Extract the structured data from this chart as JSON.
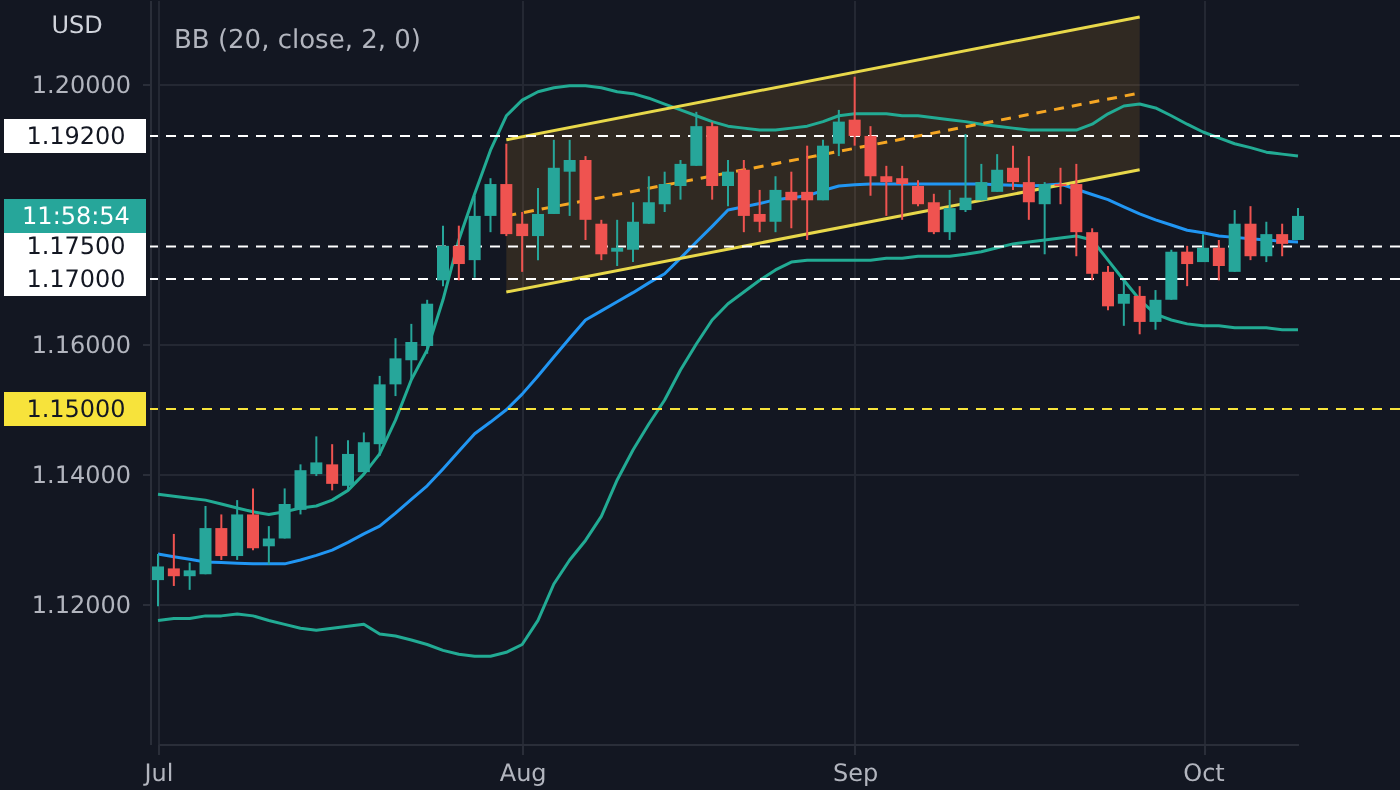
{
  "chart_data": {
    "type": "candlestick",
    "title": "BB (20, close, 2, 0)",
    "ylabel": "USD",
    "categories": [
      "Jul",
      null,
      null,
      null,
      null,
      null,
      null,
      null,
      null,
      null,
      null,
      null,
      null,
      null,
      null,
      null,
      null,
      null,
      null,
      null,
      null,
      null,
      null,
      "Aug",
      null,
      null,
      null,
      null,
      null,
      null,
      null,
      null,
      null,
      null,
      null,
      null,
      null,
      null,
      null,
      null,
      null,
      null,
      null,
      null,
      "Sep",
      null,
      null,
      null,
      null,
      null,
      null,
      null,
      null,
      null,
      null,
      null,
      null,
      null,
      null,
      null,
      null,
      null,
      null,
      null,
      null,
      null,
      "Oct",
      null,
      null,
      null,
      null,
      null,
      null
    ],
    "ohlc": [
      [
        1.1237,
        1.1277,
        1.1197,
        1.1258
      ],
      [
        1.1255,
        1.1308,
        1.1228,
        1.1243
      ],
      [
        1.1243,
        1.1264,
        1.1222,
        1.1252
      ],
      [
        1.1246,
        1.1351,
        1.1246,
        1.1317
      ],
      [
        1.1317,
        1.1338,
        1.1268,
        1.1274
      ],
      [
        1.1274,
        1.136,
        1.1268,
        1.1338
      ],
      [
        1.1338,
        1.1378,
        1.1283,
        1.1286
      ],
      [
        1.1289,
        1.132,
        1.1261,
        1.1301
      ],
      [
        1.1301,
        1.1378,
        1.1301,
        1.1354
      ],
      [
        1.1345,
        1.1415,
        1.1338,
        1.1406
      ],
      [
        1.14,
        1.1458,
        1.1397,
        1.1418
      ],
      [
        1.1415,
        1.1446,
        1.1375,
        1.1385
      ],
      [
        1.1382,
        1.1452,
        1.1375,
        1.1431
      ],
      [
        1.1403,
        1.1464,
        1.1403,
        1.1449
      ],
      [
        1.1446,
        1.1551,
        1.1428,
        1.1538
      ],
      [
        1.1538,
        1.1609,
        1.152,
        1.1578
      ],
      [
        1.1575,
        1.1631,
        1.1545,
        1.1603
      ],
      [
        1.1597,
        1.1668,
        1.1585,
        1.1662
      ],
      [
        1.1698,
        1.1782,
        1.1689,
        1.1751
      ],
      [
        1.1751,
        1.1782,
        1.1698,
        1.1723
      ],
      [
        1.1729,
        1.1828,
        1.1702,
        1.1797
      ],
      [
        1.1797,
        1.1855,
        1.1772,
        1.1846
      ],
      [
        1.1846,
        1.1908,
        1.1766,
        1.1769
      ],
      [
        1.1785,
        1.1803,
        1.1711,
        1.1766
      ],
      [
        1.1766,
        1.184,
        1.1729,
        1.18
      ],
      [
        1.18,
        1.1914,
        1.18,
        1.1871
      ],
      [
        1.1865,
        1.1914,
        1.1797,
        1.1883
      ],
      [
        1.1883,
        1.1889,
        1.176,
        1.1791
      ],
      [
        1.1785,
        1.1791,
        1.1729,
        1.1738
      ],
      [
        1.1742,
        1.1791,
        1.172,
        1.1748
      ],
      [
        1.1745,
        1.1818,
        1.1726,
        1.1788
      ],
      [
        1.1785,
        1.1858,
        1.1785,
        1.1818
      ],
      [
        1.1815,
        1.1865,
        1.1803,
        1.1846
      ],
      [
        1.1843,
        1.1883,
        1.1822,
        1.1877
      ],
      [
        1.1874,
        1.1957,
        1.1874,
        1.1935
      ],
      [
        1.1935,
        1.1941,
        1.1822,
        1.1843
      ],
      [
        1.1843,
        1.1883,
        1.1812,
        1.1865
      ],
      [
        1.1868,
        1.1883,
        1.1772,
        1.1797
      ],
      [
        1.18,
        1.1837,
        1.1772,
        1.1788
      ],
      [
        1.1788,
        1.1858,
        1.1772,
        1.1837
      ],
      [
        1.1834,
        1.1865,
        1.1778,
        1.1821
      ],
      [
        1.1834,
        1.1905,
        1.176,
        1.1821
      ],
      [
        1.1821,
        1.1914,
        1.1821,
        1.1905
      ],
      [
        1.1908,
        1.196,
        1.1889,
        1.1942
      ],
      [
        1.1945,
        1.2011,
        1.1905,
        1.192
      ],
      [
        1.192,
        1.1935,
        1.1828,
        1.1858
      ],
      [
        1.1858,
        1.1874,
        1.1797,
        1.1849
      ],
      [
        1.1855,
        1.1874,
        1.1791,
        1.1846
      ],
      [
        1.1843,
        1.1852,
        1.1812,
        1.1815
      ],
      [
        1.1818,
        1.1831,
        1.1769,
        1.1772
      ],
      [
        1.1772,
        1.1837,
        1.176,
        1.1809
      ],
      [
        1.1806,
        1.1923,
        1.1803,
        1.1825
      ],
      [
        1.1821,
        1.1877,
        1.1821,
        1.1849
      ],
      [
        1.1834,
        1.1892,
        1.1834,
        1.1868
      ],
      [
        1.1871,
        1.1905,
        1.1837,
        1.1849
      ],
      [
        1.1849,
        1.1889,
        1.1791,
        1.1818
      ],
      [
        1.1815,
        1.1849,
        1.1738,
        1.1846
      ],
      [
        1.1846,
        1.1871,
        1.1815,
        1.1843
      ],
      [
        1.1846,
        1.1877,
        1.1735,
        1.1772
      ],
      [
        1.1772,
        1.1778,
        1.1698,
        1.1708
      ],
      [
        1.1711,
        1.172,
        1.1652,
        1.1658
      ],
      [
        1.1662,
        1.1698,
        1.1628,
        1.1677
      ],
      [
        1.1674,
        1.1689,
        1.1615,
        1.1634
      ],
      [
        1.1634,
        1.1683,
        1.1622,
        1.1668
      ],
      [
        1.1668,
        1.1745,
        1.1668,
        1.1742
      ],
      [
        1.1742,
        1.1751,
        1.1689,
        1.1723
      ],
      [
        1.1726,
        1.1769,
        1.1726,
        1.1748
      ],
      [
        1.1748,
        1.176,
        1.1698,
        1.172
      ],
      [
        1.1711,
        1.1806,
        1.1711,
        1.1785
      ],
      [
        1.1785,
        1.1812,
        1.1729,
        1.1735
      ],
      [
        1.1735,
        1.1788,
        1.1726,
        1.1769
      ],
      [
        1.1769,
        1.1785,
        1.1735,
        1.1754
      ],
      [
        1.176,
        1.1809,
        1.176,
        1.1797
      ]
    ],
    "colors": [
      "#26a69a",
      "#ef5350",
      "#26a69a",
      "#26a69a",
      "#ef5350",
      "#26a69a",
      "#ef5350",
      "#26a69a",
      "#26a69a",
      "#26a69a",
      "#26a69a",
      "#ef5350",
      "#26a69a",
      "#26a69a",
      "#26a69a",
      "#26a69a",
      "#26a69a",
      "#26a69a",
      "#26a69a",
      "#ef5350",
      "#26a69a",
      "#26a69a",
      "#ef5350",
      "#ef5350",
      "#26a69a",
      "#26a69a",
      "#26a69a",
      "#ef5350",
      "#ef5350",
      "#26a69a",
      "#26a69a",
      "#26a69a",
      "#26a69a",
      "#26a69a",
      "#26a69a",
      "#ef5350",
      "#26a69a",
      "#ef5350",
      "#ef5350",
      "#26a69a",
      "#ef5350",
      "#ef5350",
      "#26a69a",
      "#26a69a",
      "#ef5350",
      "#ef5350",
      "#ef5350",
      "#ef5350",
      "#ef5350",
      "#ef5350",
      "#26a69a",
      "#26a69a",
      "#26a69a",
      "#26a69a",
      "#ef5350",
      "#ef5350",
      "#26a69a",
      "#ef5350",
      "#ef5350",
      "#ef5350",
      "#ef5350",
      "#26a69a",
      "#ef5350",
      "#26a69a",
      "#26a69a",
      "#ef5350",
      "#26a69a",
      "#ef5350",
      "#26a69a",
      "#ef5350",
      "#26a69a",
      "#ef5350",
      "#26a69a"
    ],
    "series": [
      {
        "type": "line",
        "color": "#22ab94",
        "values": [
          1.1369,
          1.1366,
          1.1363,
          1.136,
          1.1354,
          1.1348,
          1.1342,
          1.1338,
          1.1342,
          1.1348,
          1.1351,
          1.136,
          1.1375,
          1.14,
          1.1431,
          1.1483,
          1.1545,
          1.1591,
          1.1668,
          1.176,
          1.1831,
          1.1898,
          1.1951,
          1.1975,
          1.1988,
          1.1994,
          1.1997,
          1.1997,
          1.1994,
          1.1988,
          1.1985,
          1.1978,
          1.1969,
          1.196,
          1.1951,
          1.1942,
          1.1935,
          1.1932,
          1.1929,
          1.1929,
          1.1932,
          1.1935,
          1.1942,
          1.1951,
          1.1954,
          1.1954,
          1.1954,
          1.1951,
          1.1951,
          1.1948,
          1.1945,
          1.1942,
          1.1938,
          1.1935,
          1.1932,
          1.1929,
          1.1929,
          1.1929,
          1.1929,
          1.1938,
          1.1954,
          1.1966,
          1.1969,
          1.1963,
          1.1951,
          1.1938,
          1.1926,
          1.1917,
          1.1908,
          1.1902,
          1.1895,
          1.1892,
          1.1889
        ]
      },
      {
        "type": "line",
        "color": "#22ab94",
        "values": [
          1.1175,
          1.1178,
          1.1178,
          1.1182,
          1.1182,
          1.1185,
          1.1182,
          1.1175,
          1.1169,
          1.1163,
          1.116,
          1.1163,
          1.1166,
          1.1169,
          1.1154,
          1.1151,
          1.1145,
          1.1138,
          1.1129,
          1.1123,
          1.112,
          1.112,
          1.1126,
          1.1138,
          1.1175,
          1.1231,
          1.1268,
          1.1298,
          1.1335,
          1.1391,
          1.1437,
          1.1477,
          1.1514,
          1.156,
          1.16,
          1.1637,
          1.1662,
          1.168,
          1.1698,
          1.1714,
          1.1726,
          1.1729,
          1.1729,
          1.1729,
          1.1729,
          1.1729,
          1.1732,
          1.1732,
          1.1735,
          1.1735,
          1.1735,
          1.1738,
          1.1742,
          1.1748,
          1.1754,
          1.1757,
          1.176,
          1.1763,
          1.1766,
          1.176,
          1.1729,
          1.1698,
          1.1668,
          1.1646,
          1.1637,
          1.1631,
          1.1628,
          1.1628,
          1.1625,
          1.1625,
          1.1625,
          1.1622,
          1.1622
        ]
      },
      {
        "type": "line",
        "color": "#2196f3",
        "values": [
          1.1277,
          1.1273,
          1.1269,
          1.1265,
          1.1264,
          1.1263,
          1.1262,
          1.1262,
          1.1262,
          1.1268,
          1.1275,
          1.1283,
          1.1295,
          1.1308,
          1.132,
          1.134,
          1.1361,
          1.1382,
          1.1408,
          1.1435,
          1.1462,
          1.148,
          1.1499,
          1.1523,
          1.1551,
          1.158,
          1.1609,
          1.1637,
          1.1651,
          1.1665,
          1.1679,
          1.1694,
          1.1708,
          1.1732,
          1.1757,
          1.1781,
          1.1806,
          1.1811,
          1.1816,
          1.1822,
          1.1825,
          1.1828,
          1.1836,
          1.1843,
          1.1845,
          1.1846,
          1.1846,
          1.1846,
          1.1846,
          1.1846,
          1.1846,
          1.1846,
          1.1846,
          1.1845,
          1.1844,
          1.1843,
          1.1844,
          1.1846,
          1.1838,
          1.183,
          1.1822,
          1.1811,
          1.18,
          1.1791,
          1.1783,
          1.1775,
          1.1771,
          1.1766,
          1.1764,
          1.1762,
          1.176,
          1.1758,
          1.1757
        ]
      },
      {
        "type": "line",
        "color": "#e8d84a",
        "values": [
          null,
          null,
          null,
          null,
          null,
          null,
          null,
          null,
          null,
          null,
          null,
          null,
          null,
          null,
          null,
          null,
          null,
          null,
          null,
          null,
          null,
          null,
          1.1914,
          null,
          null,
          null,
          null,
          null,
          null,
          null,
          null,
          null,
          null,
          null,
          null,
          null,
          null,
          null,
          null,
          null,
          null,
          null,
          null,
          null,
          null,
          null,
          null,
          null,
          null,
          null,
          null,
          null,
          null,
          null,
          null,
          null,
          null,
          null,
          null,
          null,
          null,
          null,
          1.2103,
          null,
          null,
          null,
          null,
          null,
          null,
          null,
          null,
          null,
          null
        ]
      },
      {
        "type": "line",
        "color": "#e8d84a",
        "values": [
          null,
          null,
          null,
          null,
          null,
          null,
          null,
          null,
          null,
          null,
          null,
          null,
          null,
          null,
          null,
          null,
          null,
          null,
          null,
          null,
          null,
          null,
          1.168,
          null,
          null,
          null,
          null,
          null,
          null,
          null,
          null,
          null,
          null,
          null,
          null,
          null,
          null,
          null,
          null,
          null,
          null,
          null,
          null,
          null,
          null,
          null,
          null,
          null,
          null,
          null,
          null,
          null,
          null,
          null,
          null,
          null,
          null,
          null,
          null,
          null,
          null,
          null,
          1.1868,
          null,
          null,
          null,
          null,
          null,
          null,
          null,
          null,
          null,
          null
        ]
      },
      {
        "type": "line",
        "color": "#f5a623",
        "line_style": "dashed",
        "values": [
          null,
          null,
          null,
          null,
          null,
          null,
          null,
          null,
          null,
          null,
          null,
          null,
          null,
          null,
          null,
          null,
          null,
          null,
          null,
          null,
          null,
          null,
          1.1797,
          null,
          null,
          null,
          null,
          null,
          null,
          null,
          null,
          null,
          null,
          null,
          null,
          null,
          null,
          null,
          null,
          null,
          null,
          null,
          null,
          null,
          null,
          null,
          null,
          null,
          null,
          null,
          null,
          null,
          null,
          null,
          null,
          null,
          null,
          null,
          null,
          null,
          null,
          null,
          1.1986,
          null,
          null,
          null,
          null,
          null,
          null,
          null,
          null,
          null,
          null
        ],
        "lower": [
          null,
          null,
          null,
          null,
          null,
          null,
          null,
          null,
          null,
          null,
          null,
          null,
          null,
          null,
          null,
          null,
          null,
          null,
          null,
          null,
          null,
          null,
          1.168,
          null,
          null,
          null,
          null,
          null,
          null,
          null,
          null,
          null,
          null,
          null,
          null,
          null,
          null,
          null,
          null,
          null,
          null,
          null,
          null,
          null,
          null,
          null,
          null,
          null,
          null,
          null,
          null,
          null,
          null,
          null,
          null,
          null,
          null,
          null,
          null,
          null,
          null,
          null,
          1.1868,
          null,
          null,
          null,
          null,
          null,
          null,
          null,
          null,
          null,
          null
        ],
        "upper": [
          null,
          null,
          null,
          null,
          null,
          null,
          null,
          null,
          null,
          null,
          null,
          null,
          null,
          null,
          null,
          null,
          null,
          null,
          null,
          null,
          null,
          null,
          1.1914,
          null,
          null,
          null,
          null,
          null,
          null,
          null,
          null,
          null,
          null,
          null,
          null,
          null,
          null,
          null,
          null,
          null,
          null,
          null,
          null,
          null,
          null,
          null,
          null,
          null,
          null,
          null,
          null,
          null,
          null,
          null,
          null,
          null,
          null,
          null,
          null,
          null,
          null,
          null,
          1.2103,
          null,
          null,
          null,
          null,
          null,
          null,
          null,
          null,
          null,
          null
        ]
      }
    ],
    "ylim": [
      1.0985,
      1.2129
    ],
    "yticks": [
      {
        "value": 1.12,
        "label": "1.12000"
      },
      {
        "value": 1.14,
        "label": "1.14000"
      },
      {
        "value": 1.16,
        "label": "1.16000"
      },
      {
        "value": 1.2,
        "label": "1.20000"
      }
    ],
    "ref_lines": [
      {
        "axis": "y",
        "value": 1.192,
        "label": "1.19200",
        "color": "#ffffff",
        "line_style": "dashed"
      },
      {
        "axis": "y",
        "value": 1.175,
        "label": "1.17500",
        "color": "#ffffff",
        "line_style": "dashed"
      },
      {
        "axis": "y",
        "value": 1.17,
        "label": "1.17000",
        "color": "#ffffff",
        "line_style": "dashed"
      },
      {
        "axis": "y",
        "value": 1.15,
        "label": "1.15000",
        "color": "#f7e33b",
        "line_style": "dashed"
      }
    ],
    "annotations": [
      "11:58:54"
    ],
    "grid": true
  }
}
